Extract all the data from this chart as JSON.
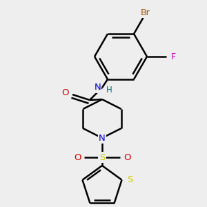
{
  "bg_color": "#eeeeee",
  "bond_color": "#000000",
  "bond_width": 1.8,
  "atom_colors": {
    "Br": "#a05000",
    "F": "#cc00cc",
    "N": "#0000cc",
    "O": "#cc0000",
    "S_sulfonyl": "#cccc00",
    "S_thiophene": "#cccc00",
    "C": "#000000",
    "H": "#007070"
  },
  "font_size": 8.5,
  "fig_width": 3.0,
  "fig_height": 3.0,
  "dpi": 100
}
